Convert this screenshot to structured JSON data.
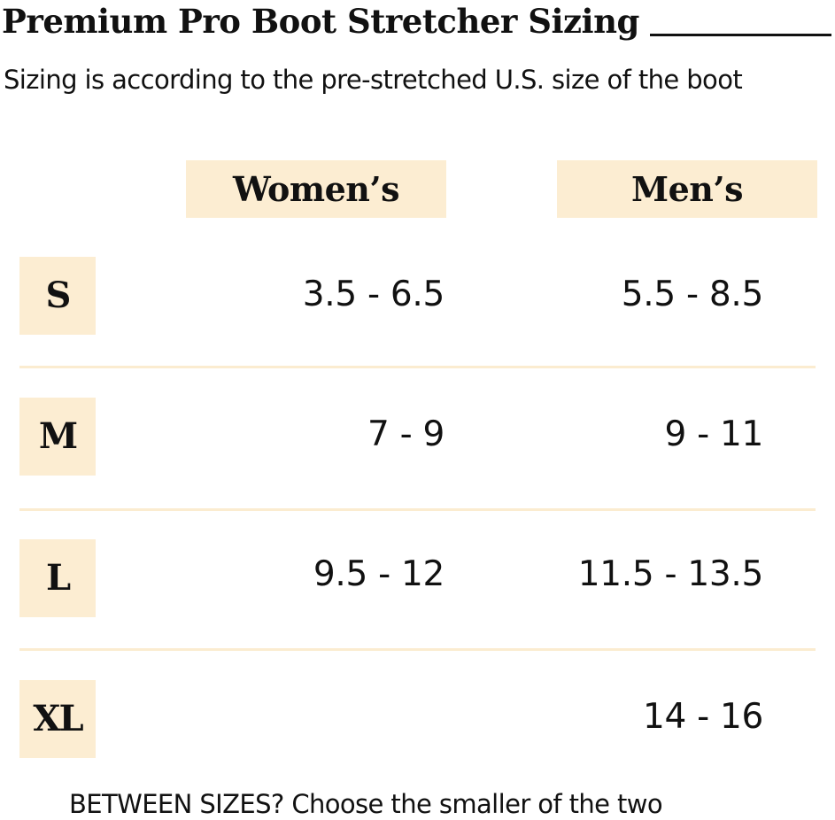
{
  "header": {
    "title": "Premium Pro Boot Stretcher Sizing",
    "subtitle": "Sizing is according to the pre-stretched U.S. size of the boot"
  },
  "table": {
    "columns": [
      "Women’s",
      "Men’s"
    ],
    "rows": [
      {
        "size": "S",
        "womens": "3.5 - 6.5",
        "mens": "5.5 - 8.5"
      },
      {
        "size": "M",
        "womens": "7 - 9",
        "mens": "9 - 11"
      },
      {
        "size": "L",
        "womens": "9.5 - 12",
        "mens": "11.5 - 13.5"
      },
      {
        "size": "XL",
        "womens": "",
        "mens": "14 - 16"
      }
    ]
  },
  "footer": {
    "note": "BETWEEN SIZES? Choose the smaller of the two"
  },
  "colors": {
    "cell_background": "#fcedd2",
    "text": "#111111"
  }
}
